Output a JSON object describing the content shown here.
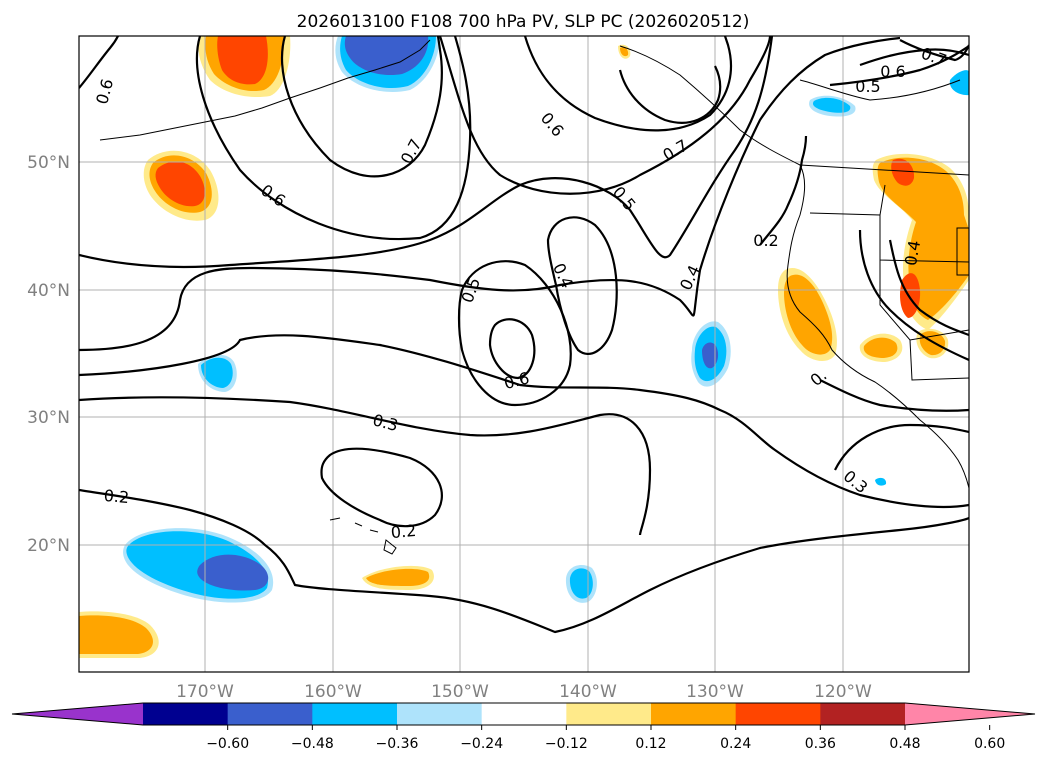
{
  "title": "2026013100 F108 700 hPa PV, SLP PC (2026020512)",
  "map": {
    "lon_ticks": [
      "170°W",
      "160°W",
      "150°W",
      "140°W",
      "130°W",
      "120°W"
    ],
    "lat_ticks": [
      "50°N",
      "40°N",
      "30°N",
      "20°N"
    ],
    "grid": true,
    "coastlines": true,
    "contour_labels": [
      "0.6",
      "0.6",
      "0.7",
      "0.6",
      "0.5",
      "0.7",
      "0.7",
      "0.6",
      "0.5",
      "0.2",
      "0.4",
      "0.5",
      "0.4",
      "0.6",
      "0.4",
      "0.3",
      "0.2",
      "0.2",
      "0.3",
      "0."
    ]
  },
  "colorbar": {
    "ticks": [
      "−0.60",
      "−0.48",
      "−0.36",
      "−0.24",
      "−0.12",
      "0.12",
      "0.24",
      "0.36",
      "0.48",
      "0.60"
    ],
    "colors": [
      "#9933cc",
      "#000090",
      "#3a5fcd",
      "#00bfff",
      "#aee3fb",
      "#ffffff",
      "#ffea8a",
      "#ffa500",
      "#ff4500",
      "#b22222",
      "#ff85a8"
    ],
    "extend": "both"
  }
}
